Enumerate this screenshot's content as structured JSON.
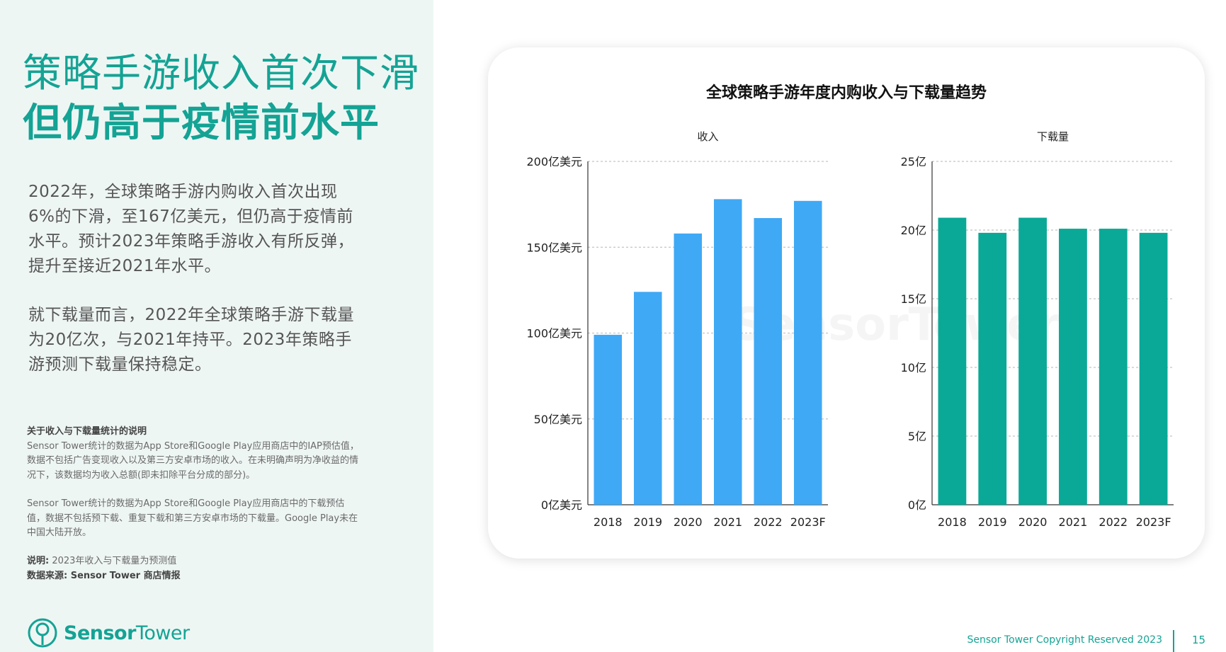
{
  "heading": {
    "line1": "策略手游收入首次下滑",
    "line2": "但仍高于疫情前水平"
  },
  "paragraphs": [
    "2022年，全球策略手游内购收入首次出现6%的下滑，至167亿美元，但仍高于疫情前水平。预计2023年策略手游收入有所反弹，提升至接近2021年水平。",
    "就下载量而言，2022年全球策略手游下载量为20亿次，与2021年持平。2023年策略手游预测下载量保持稳定。"
  ],
  "notes": {
    "title": "关于收入与下载量统计的说明",
    "revenue_note": "Sensor Tower统计的数据为App Store和Google Play应用商店中的IAP预估值，数据不包括广告变现收入以及第三方安卓市场的收入。在未明确声明为净收益的情况下，该数据均为收入总额(即未扣除平台分成的部分)。",
    "download_note": "Sensor Tower统计的数据为App Store和Google Play应用商店中的下载预估值，数据不包括预下载、重复下载和第三方安卓市场的下载量。Google Play未在中国大陆开放。",
    "explain_label": "说明:",
    "explain_text": "2023年收入与下载量为预测值",
    "source": "数据来源: Sensor Tower 商店情报"
  },
  "logo": {
    "part1": "Sensor",
    "part2": "Tower"
  },
  "watermark": "SensorTower",
  "footer": {
    "copyright": "Sensor Tower Copyright Reserved 2023",
    "page": "15"
  },
  "colors": {
    "brand": "#14a394",
    "revenue_bar": "#3fa9f5",
    "download_bar": "#0aa897",
    "left_bg": "#eef6f4"
  },
  "chart_data": {
    "title": "全球策略手游年度内购收入与下载量趋势",
    "charts": [
      {
        "type": "bar",
        "subtitle": "收入",
        "categories": [
          "2018",
          "2019",
          "2020",
          "2021",
          "2022",
          "2023F"
        ],
        "values": [
          99,
          124,
          158,
          178,
          167,
          177
        ],
        "ylim": [
          0,
          200
        ],
        "yticks": [
          0,
          50,
          100,
          150,
          200
        ],
        "ytick_labels": [
          "0亿美元",
          "50亿美元",
          "100亿美元",
          "150亿美元",
          "200亿美元"
        ],
        "grid": true,
        "color": "#3fa9f5"
      },
      {
        "type": "bar",
        "subtitle": "下载量",
        "categories": [
          "2018",
          "2019",
          "2020",
          "2021",
          "2022",
          "2023F"
        ],
        "values": [
          20.9,
          19.8,
          20.9,
          20.1,
          20.1,
          19.8
        ],
        "ylim": [
          0,
          25
        ],
        "yticks": [
          0,
          5,
          10,
          15,
          20,
          25
        ],
        "ytick_labels": [
          "0亿",
          "5亿",
          "10亿",
          "15亿",
          "20亿",
          "25亿"
        ],
        "grid": true,
        "color": "#0aa897"
      }
    ]
  }
}
